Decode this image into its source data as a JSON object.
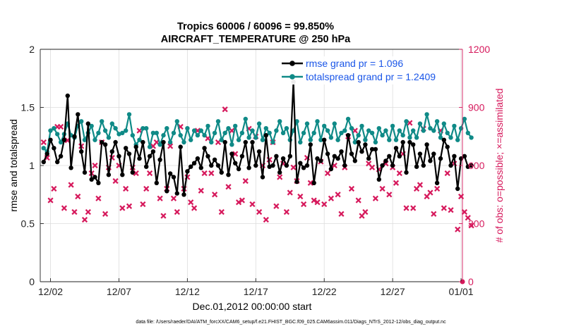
{
  "chart_data": {
    "type": "line",
    "title_line1": "Tropics 60006 / 60096 = 99.850%",
    "title_line2": "AIRCRAFT_TEMPERATURE @ 250 hPa",
    "xlabel": "Dec.01,2012 00:00:00 start",
    "ylabel_left": "rmse and totalspread",
    "ylabel_right": "# of obs: o=possible; ×=assimilated",
    "footnote": "data file: /Users/raeder/DAI/ATM_forcXX/CAM6_setup/f.e21.FHIST_BGC.f09_025.CAM6assim.011/Diags_NTrS_2012-12/obs_diag_output.nc",
    "x_tick_values": [
      1.5,
      6.5,
      11.5,
      16.5,
      21.5,
      26.5,
      31.5
    ],
    "x_tick_labels": [
      "12/02",
      "12/07",
      "12/12",
      "12/17",
      "12/22",
      "12/27",
      "01/01"
    ],
    "xlim": [
      0.75,
      31.6
    ],
    "ylim_left": [
      0,
      2
    ],
    "y_ticks_left": [
      "0",
      "0.5",
      "1",
      "1.5",
      "2"
    ],
    "ylim_right": [
      0,
      1200
    ],
    "y_ticks_right": [
      "0",
      "300",
      "600",
      "900",
      "1200"
    ],
    "colors": {
      "rmse": "#000000",
      "spread": "#0f8a87",
      "obs": "#d6195c",
      "axis_right": "#d6195c",
      "legend_text": "#1a56e8"
    },
    "series": [
      {
        "name": "rmse grand pr = 1.096",
        "axis": "left",
        "start": 1.0,
        "step": 0.25,
        "values": [
          1.03,
          1.1,
          1.22,
          1.15,
          1.03,
          1.08,
          1.22,
          1.6,
          0.98,
          1.25,
          1.44,
          1.12,
          0.94,
          1.36,
          0.88,
          0.9,
          0.85,
          1.2,
          1.18,
          0.92,
          1.12,
          1.2,
          1.08,
          0.92,
          1.15,
          1.1,
          0.94,
          1.16,
          1.06,
          1.2,
          0.99,
          1.08,
          1.12,
          0.85,
          1.05,
          1.2,
          0.78,
          0.93,
          0.9,
          0.76,
          1.16,
          0.75,
          0.95,
          0.99,
          1.02,
          1.06,
          0.98,
          1.15,
          1.08,
          1.0,
          1.05,
          1.0,
          0.94,
          1.2,
          0.92,
          1.1,
          1.02,
          0.97,
          1.08,
          1.2,
          0.98,
          1.2,
          1.0,
          1.12,
          0.9,
          1.26,
          0.99,
          1.0,
          1.08,
          0.94,
          1.06,
          1.0,
          1.08,
          1.72,
          0.86,
          1.02,
          0.98,
          1.0,
          1.18,
          0.85,
          1.06,
          1.04,
          1.22,
          1.1,
          0.97,
          1.08,
          1.06,
          1.12,
          1.0,
          1.26,
          1.1,
          1.04,
          1.2,
          1.12,
          1.18,
          1.06,
          1.14,
          1.14,
          0.88,
          1.0,
          1.04,
          1.08,
          1.0,
          1.15,
          1.08,
          1.2,
          0.94,
          1.2,
          1.18,
          0.99,
          1.1,
          1.0,
          1.18,
          1.04,
          1.1,
          0.85,
          1.06,
          1.22,
          1.16,
          1.0,
          1.08,
          0.8,
          1.06,
          1.08,
          0.99,
          1.0
        ],
        "label": "rmse grand pr = 1.096"
      },
      {
        "name": "totalspread grand pr = 1.2409",
        "axis": "left",
        "start": 1.0,
        "step": 0.25,
        "values": [
          1.15,
          1.12,
          1.3,
          1.32,
          1.27,
          1.2,
          1.27,
          1.36,
          1.26,
          1.24,
          1.34,
          1.38,
          1.22,
          1.28,
          1.34,
          1.22,
          1.28,
          1.38,
          1.3,
          1.24,
          1.36,
          1.32,
          1.27,
          1.28,
          1.3,
          1.44,
          1.26,
          1.18,
          1.22,
          1.32,
          1.32,
          1.16,
          1.28,
          1.28,
          1.18,
          1.26,
          1.32,
          1.2,
          1.28,
          1.38,
          1.26,
          1.2,
          1.32,
          1.22,
          1.3,
          1.26,
          1.3,
          1.26,
          1.34,
          1.2,
          1.28,
          1.38,
          1.22,
          1.28,
          1.32,
          1.18,
          1.34,
          1.22,
          1.28,
          1.4,
          1.24,
          1.3,
          1.24,
          1.36,
          1.22,
          1.32,
          1.28,
          1.2,
          1.3,
          1.38,
          1.28,
          1.32,
          1.22,
          1.3,
          1.38,
          1.2,
          1.28,
          1.36,
          1.22,
          1.28,
          1.38,
          1.22,
          1.34,
          1.3,
          1.24,
          1.36,
          1.22,
          1.28,
          1.3,
          1.4,
          1.32,
          1.2,
          1.26,
          1.34,
          1.22,
          1.3,
          1.28,
          1.2,
          1.32,
          1.26,
          1.3,
          1.22,
          1.34,
          1.22,
          1.3,
          1.26,
          1.38,
          1.24,
          1.3,
          1.24,
          1.36,
          1.3,
          1.44,
          1.32,
          1.3,
          1.38,
          1.24,
          1.36,
          1.28,
          1.24,
          1.34,
          1.22,
          1.32,
          1.4,
          1.28,
          1.24
        ],
        "label": "totalspread grand pr = 1.2409"
      },
      {
        "name": "obs assimilated",
        "axis": "right",
        "start": 1.0,
        "step": 0.25,
        "values": [
          720,
          640,
          420,
          480,
          800,
          800,
          380,
          730,
          500,
          360,
          440,
          700,
          320,
          360,
          560,
          600,
          430,
          720,
          350,
          590,
          640,
          520,
          600,
          380,
          480,
          390,
          590,
          560,
          780,
          400,
          480,
          560,
          700,
          720,
          430,
          340,
          480,
          700,
          430,
          360,
          800,
          480,
          540,
          410,
          380,
          780,
          470,
          560,
          740,
          560,
          450,
          720,
          360,
          890,
          490,
          780,
          660,
          410,
          420,
          520,
          790,
          400,
          750,
          360,
          600,
          320,
          630,
          720,
          390,
          540,
          610,
          360,
          460,
          590,
          520,
          440,
          400,
          640,
          510,
          420,
          410,
          620,
          400,
          560,
          430,
          600,
          450,
          350,
          590,
          750,
          480,
          780,
          420,
          340,
          360,
          610,
          590,
          430,
          580,
          480,
          610,
          450,
          590,
          510,
          560,
          660,
          380,
          820,
          380,
          480,
          500,
          790,
          440,
          460,
          350,
          480,
          780,
          380,
          560,
          370,
          610,
          270,
          440,
          360,
          330,
          290
        ],
        "markers": "x"
      }
    ],
    "legend": [
      {
        "label": "rmse grand pr = 1.096",
        "series": 0
      },
      {
        "label": "totalspread grand pr = 1.2409",
        "series": 1
      }
    ]
  }
}
